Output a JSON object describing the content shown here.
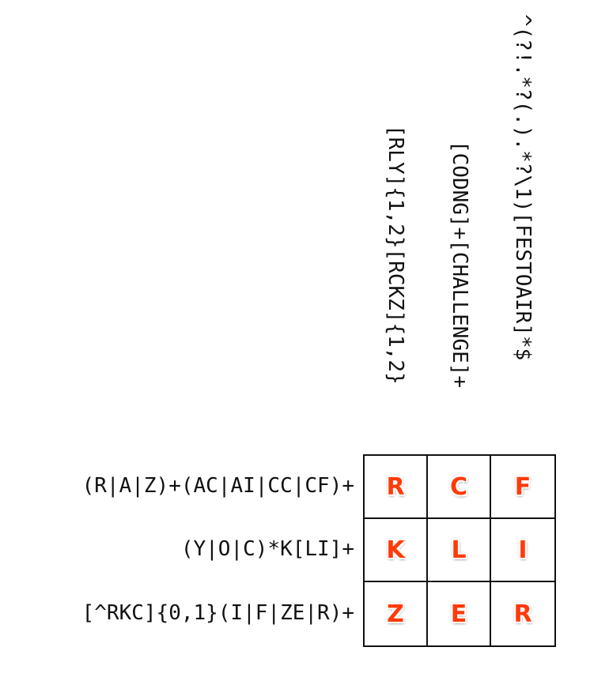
{
  "column_clues": [
    "[RLY]{1,2}[RCKZ]{1,2}",
    "[CODNG]+[CHALLENGE]+",
    "^(?!.*?(.).*?\\1)[FESTOAIR]*$"
  ],
  "row_clues": [
    "(R|A|Z)+(AC|AI|CC|CF)+",
    "(Y|O|C)*K[LI]+",
    "[^RKC]{0,1}(I|F|ZE|R)+"
  ],
  "grid": [
    [
      "R",
      "C",
      "F"
    ],
    [
      "K",
      "L",
      "I"
    ],
    [
      "Z",
      "E",
      "R"
    ]
  ],
  "colors": {
    "letter": "#ff3b0a",
    "grid_line": "#111111",
    "clue_text": "#111111"
  }
}
